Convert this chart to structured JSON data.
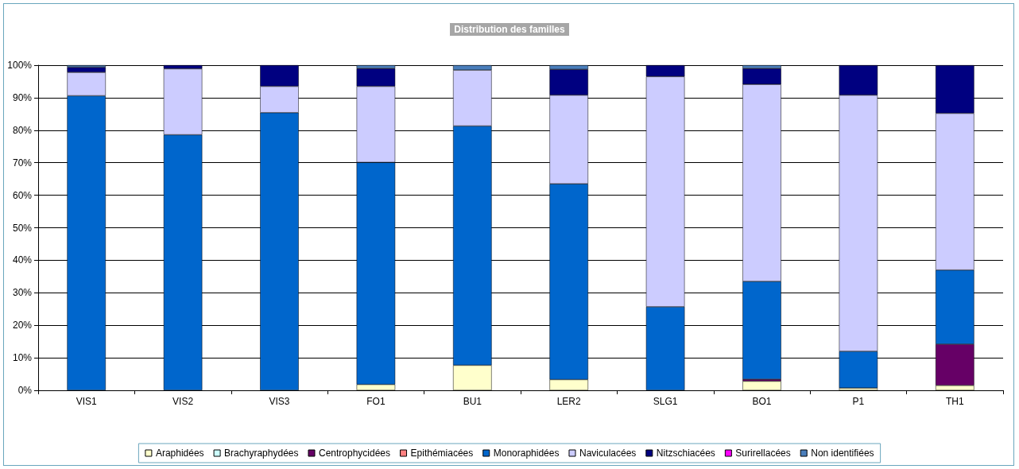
{
  "chart_data": {
    "type": "bar",
    "stacked": true,
    "title": "Distribution des familles",
    "categories": [
      "VIS1",
      "VIS2",
      "VIS3",
      "FO1",
      "BU1",
      "LER2",
      "SLG1",
      "BO1",
      "P1",
      "TH1"
    ],
    "series": [
      {
        "name": "Araphidées",
        "color": "#ffffcc",
        "values": [
          null,
          null,
          null,
          1.8,
          7.7,
          3.3,
          null,
          2.8,
          0.7,
          1.5
        ]
      },
      {
        "name": "Brachyraphydées",
        "color": "#ccffff",
        "values": [
          null,
          null,
          null,
          null,
          null,
          null,
          null,
          null,
          null,
          null
        ]
      },
      {
        "name": "Centrophycidées",
        "color": "#660066",
        "values": [
          null,
          null,
          null,
          null,
          null,
          null,
          null,
          0.6,
          null,
          12.7
        ]
      },
      {
        "name": "Epithémiacées",
        "color": "#ff8080",
        "values": [
          null,
          null,
          null,
          null,
          null,
          null,
          null,
          null,
          null,
          null
        ]
      },
      {
        "name": "Monoraphidées",
        "color": "#0066cc",
        "values": [
          90.6,
          78.6,
          85.4,
          68.3,
          73.6,
          60.2,
          25.7,
          30.1,
          11.3,
          22.8
        ]
      },
      {
        "name": "Naviculacées",
        "color": "#ccccff",
        "values": [
          7.2,
          20.3,
          8.1,
          23.4,
          17.2,
          27.3,
          70.8,
          60.6,
          78.8,
          48.2
        ]
      },
      {
        "name": "Nitzschiacées",
        "color": "#000080",
        "values": [
          1.6,
          1.1,
          6.5,
          5.5,
          null,
          7.9,
          3.5,
          4.9,
          9.2,
          14.8
        ]
      },
      {
        "name": "Surirellacées",
        "color": "#ff00ff",
        "values": [
          null,
          null,
          null,
          null,
          null,
          null,
          null,
          null,
          null,
          null
        ]
      },
      {
        "name": "Non identifiées",
        "color": "#4a7ebb",
        "values": [
          0.6,
          null,
          null,
          1,
          1.5,
          1.3,
          null,
          1,
          null,
          null
        ]
      }
    ],
    "ylim": [
      0,
      100
    ],
    "yticks": [
      {
        "value": 0,
        "label": "0%"
      },
      {
        "value": 10,
        "label": "10%"
      },
      {
        "value": 20,
        "label": "20%"
      },
      {
        "value": 30,
        "label": "30%"
      },
      {
        "value": 40,
        "label": "40%"
      },
      {
        "value": 50,
        "label": "50%"
      },
      {
        "value": 60,
        "label": "60%"
      },
      {
        "value": 70,
        "label": "70%"
      },
      {
        "value": 80,
        "label": "80%"
      },
      {
        "value": 90,
        "label": "90%"
      },
      {
        "value": 100,
        "label": "100%"
      }
    ],
    "grid": "y",
    "legend": "bottom"
  }
}
